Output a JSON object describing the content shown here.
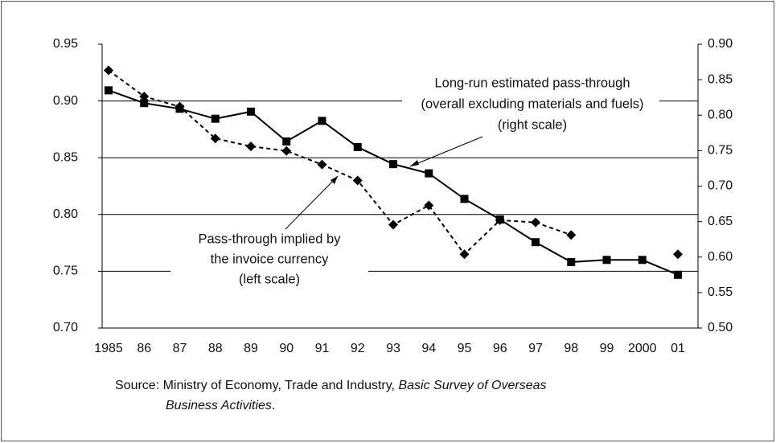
{
  "chart_data": {
    "type": "line",
    "categories": [
      "1985",
      "86",
      "87",
      "88",
      "89",
      "90",
      "91",
      "92",
      "93",
      "94",
      "95",
      "96",
      "97",
      "98",
      "99",
      "2000",
      "01"
    ],
    "series": [
      {
        "name": "Pass-through implied by the invoice currency (left scale)",
        "color": "#000000",
        "style": "dashed",
        "marker": "diamond",
        "values": [
          0.927,
          0.904,
          0.895,
          0.867,
          0.86,
          0.856,
          0.844,
          0.83,
          0.791,
          0.808,
          0.765,
          0.795,
          0.793,
          0.782,
          null,
          null,
          0.765
        ]
      },
      {
        "name": "Long-run estimated pass-through (overall excluding materials and fuels) (right scale)",
        "color": "#000000",
        "style": "solid",
        "marker": "square",
        "axis": "y2",
        "values": [
          0.835,
          0.817,
          0.809,
          0.795,
          0.805,
          0.763,
          0.792,
          0.755,
          0.731,
          0.718,
          0.682,
          0.653,
          0.621,
          0.593,
          0.596,
          0.596,
          0.575
        ]
      }
    ],
    "ylim": [
      0.7,
      0.95
    ],
    "yticks": [
      {
        "value": 0.7,
        "label": "0.70"
      },
      0.75,
      {
        "value": 0.8,
        "label": "0.80"
      },
      0.85,
      {
        "value": 0.9,
        "label": "0.90"
      },
      0.95
    ],
    "y2lim": [
      0.5,
      0.9
    ],
    "y2ticks": [
      {
        "value": 0.5,
        "label": "0.50"
      },
      0.55,
      {
        "value": 0.6,
        "label": "0.60"
      },
      0.65,
      {
        "value": 0.7,
        "label": "0.70"
      },
      0.75,
      {
        "value": 0.8,
        "label": "0.80"
      },
      0.85,
      {
        "value": 0.9,
        "label": "0.90"
      }
    ],
    "grid": true,
    "annotations": [
      [
        "Long-run estimated pass-through",
        "(overall excluding materials and fuels)",
        "(right scale)"
      ],
      [
        "Pass-through implied by",
        "the invoice currency",
        "(left scale)"
      ]
    ],
    "source": {
      "prefix": "Source: Ministry of Economy, Trade and Industry, ",
      "title_line1": "Basic Survey of Overseas",
      "title_line2": "Business Activities",
      "suffix": "."
    }
  }
}
